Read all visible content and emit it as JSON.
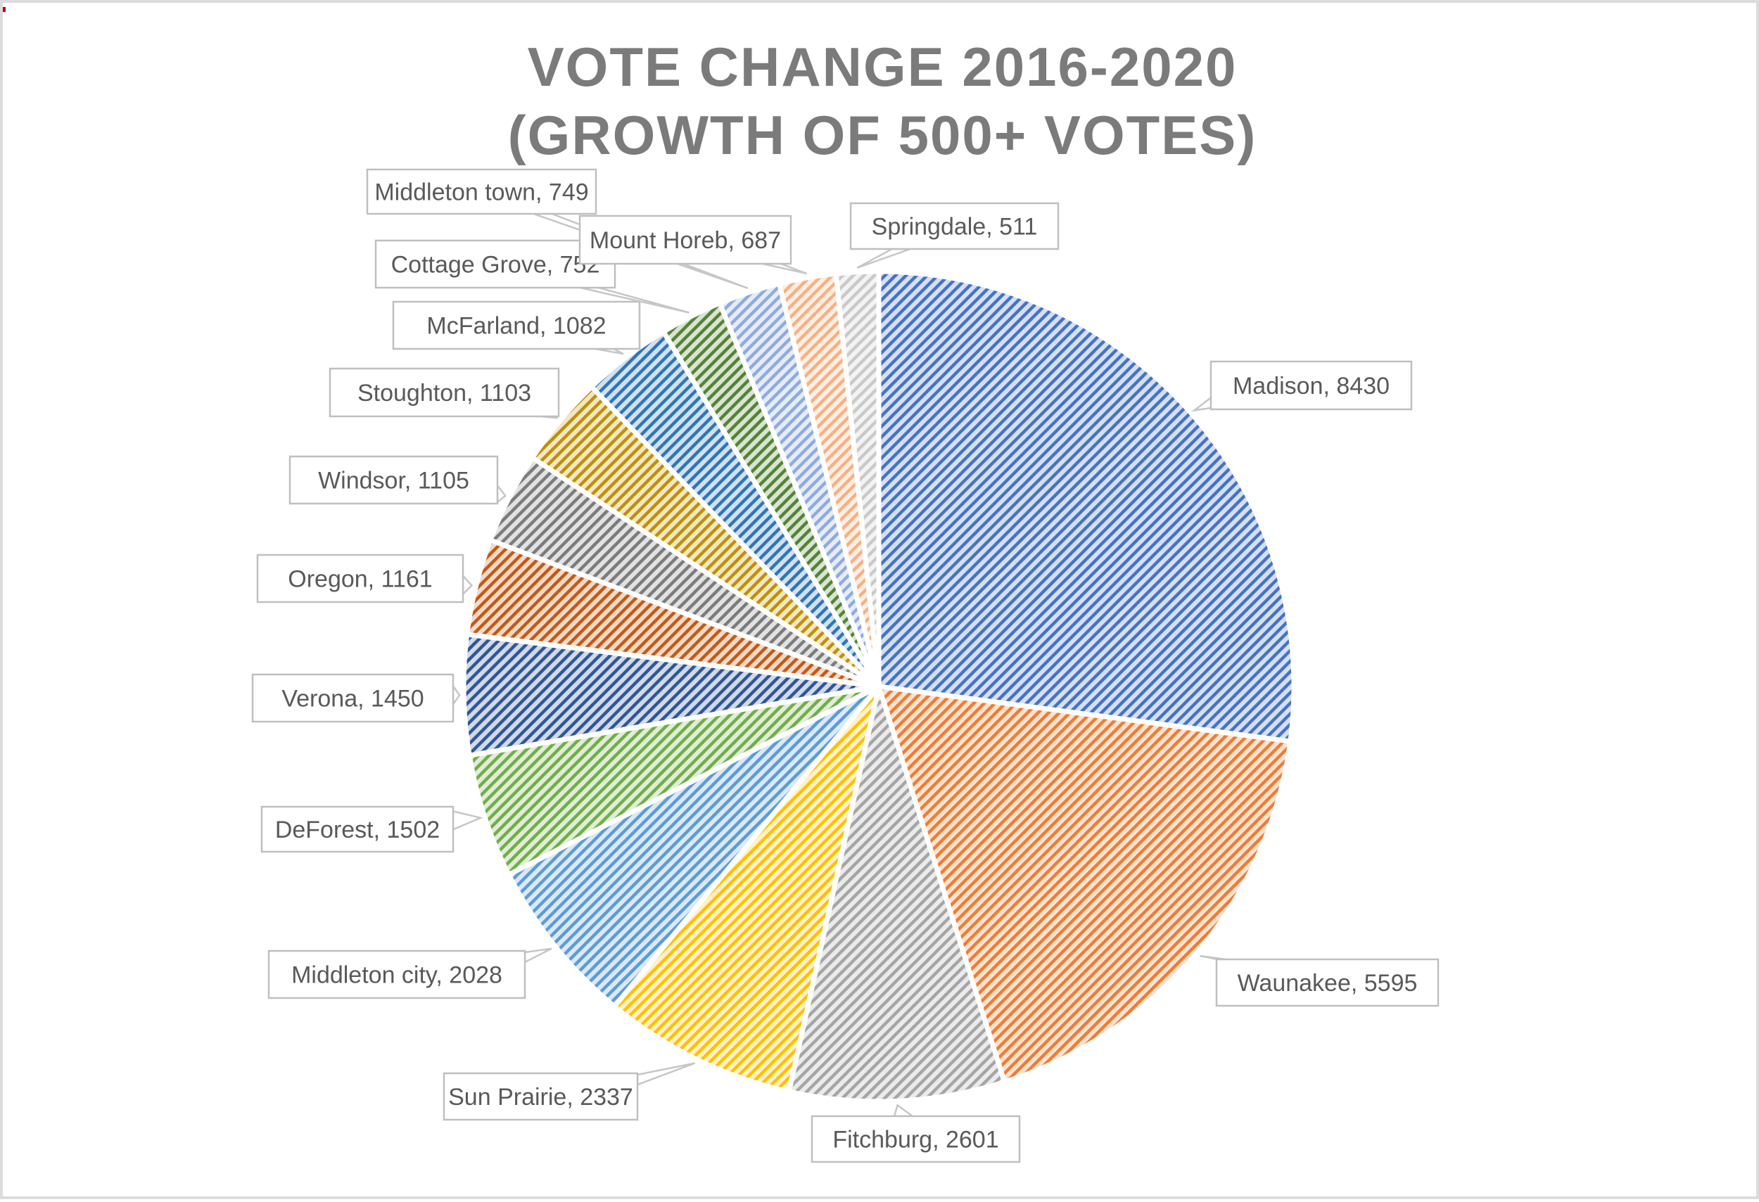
{
  "title": {
    "line1": "VOTE CHANGE 2016-2020",
    "line2": "(GROWTH OF 500+ VOTES)"
  },
  "chart_data": {
    "type": "pie",
    "title": "VOTE CHANGE 2016-2020 (GROWTH OF 500+ VOTES)",
    "legend": "none",
    "label_format": "category, value",
    "label_style": "callout-boxes-with-leader-beaks",
    "fill_style": "diagonal-hatch-pattern",
    "start_angle_deg": 0,
    "direction": "clockwise",
    "categories": [
      "Madison",
      "Waunakee",
      "Fitchburg",
      "Sun Prairie",
      "Middleton city",
      "DeForest",
      "Verona",
      "Oregon",
      "Windsor",
      "Stoughton",
      "McFarland",
      "Cottage Grove",
      "Middleton town",
      "Mount Horeb",
      "Springdale"
    ],
    "values": [
      8430,
      5595,
      2601,
      2337,
      2028,
      1502,
      1450,
      1161,
      1105,
      1103,
      1082,
      752,
      749,
      687,
      511
    ],
    "colors": [
      "#4472C4",
      "#ED7D31",
      "#A5A5A5",
      "#FFC000",
      "#5B9BD5",
      "#70AD47",
      "#2F5597",
      "#C45911",
      "#7B7B7B",
      "#BF9000",
      "#2E75B6",
      "#548235",
      "#8FAADC",
      "#F4B183",
      "#C9C9C9"
    ]
  },
  "styles": {
    "title_color": "#7B7B7B",
    "label_text_color": "#595959",
    "callout_border_color": "#BFBFBF",
    "callout_fill": "#FFFFFF",
    "slice_gap_color": "#FFFFFF",
    "background": "#FFFFFF",
    "frame_border_color": "#DCDCDC"
  }
}
